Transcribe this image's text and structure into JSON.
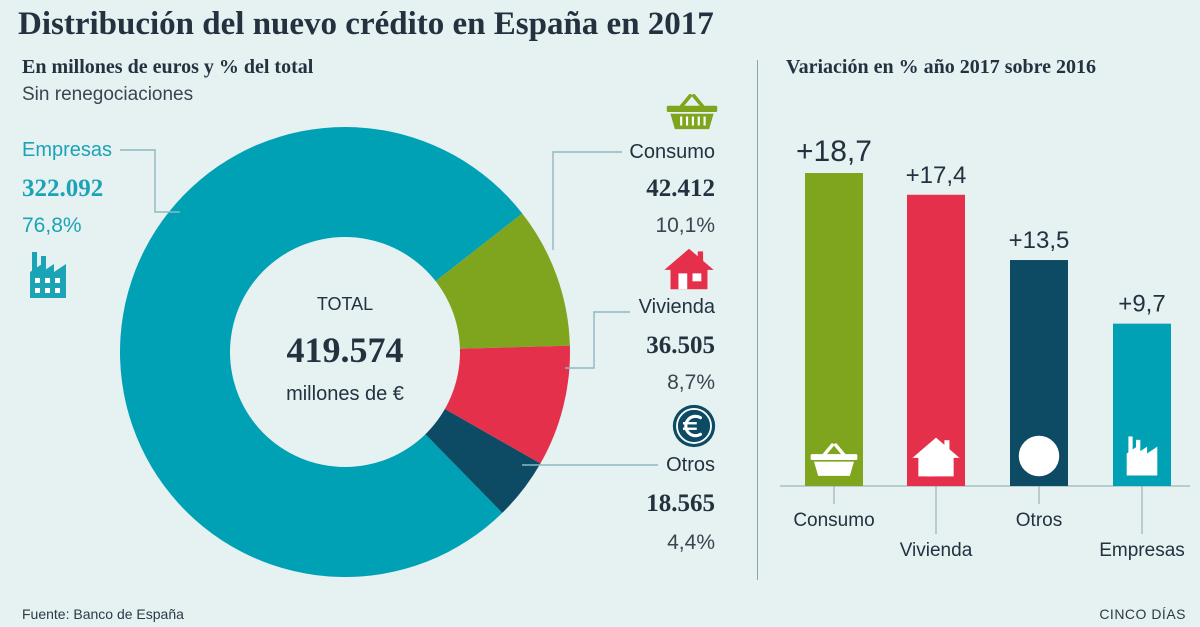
{
  "header": {
    "title": "Distribución del nuevo crédito en España en 2017",
    "subtitle": "En millones de euros y % del total",
    "note": "Sin renegociaciones",
    "right_subtitle": "Variación en % año 2017 sobre 2016"
  },
  "footer": {
    "source": "Fuente: Banco de España",
    "brand": "CINCO DÍAS"
  },
  "chart_data": [
    {
      "type": "pie",
      "variant": "donut",
      "title": "Distribución del nuevo crédito en España en 2017",
      "center": {
        "label": "TOTAL",
        "value": "419.574",
        "unit": "millones de €"
      },
      "slices": [
        {
          "name": "Empresas",
          "value": 322092,
          "value_label": "322.092",
          "pct_label": "76,8%",
          "color": "#00a1b4",
          "icon": "factory-icon"
        },
        {
          "name": "Consumo",
          "value": 42412,
          "value_label": "42.412",
          "pct_label": "10,1%",
          "color": "#7fa51e",
          "icon": "basket-icon"
        },
        {
          "name": "Vivienda",
          "value": 36505,
          "value_label": "36.505",
          "pct_label": "8,7%",
          "color": "#e5304b",
          "icon": "house-icon"
        },
        {
          "name": "Otros",
          "value": 18565,
          "value_label": "18.565",
          "pct_label": "4,4%",
          "color": "#0d4b64",
          "icon": "euro-icon"
        }
      ]
    },
    {
      "type": "bar",
      "title": "Variación en % año 2017 sobre 2016",
      "categories": [
        "Consumo",
        "Vivienda",
        "Otros",
        "Empresas"
      ],
      "values": [
        18.7,
        17.4,
        13.5,
        9.7
      ],
      "value_labels": [
        "+18,7",
        "+17,4",
        "+13,5",
        "+9,7"
      ],
      "colors": [
        "#7fa51e",
        "#e5304b",
        "#0d4b64",
        "#00a1b4"
      ],
      "icons": [
        "basket-icon",
        "house-icon",
        "euro-icon",
        "factory-icon"
      ],
      "ylim": [
        0,
        18.7
      ]
    }
  ]
}
